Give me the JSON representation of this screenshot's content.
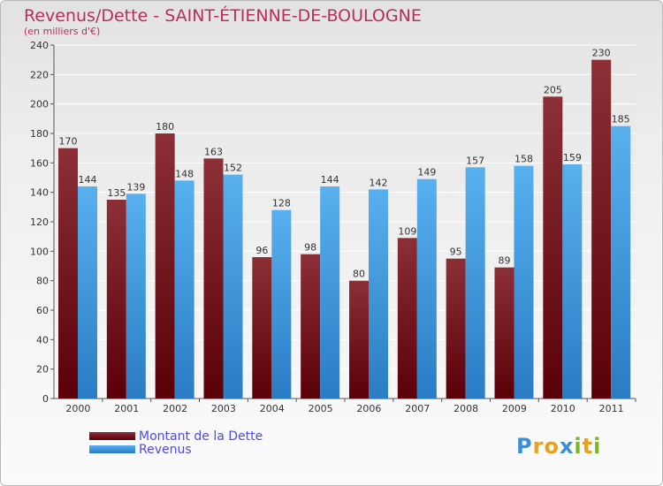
{
  "chart_data": {
    "type": "bar",
    "title": "Revenus/Dette - SAINT-ÉTIENNE-DE-BOULOGNE",
    "subtitle": "(en milliers d'€)",
    "categories": [
      "2000",
      "2001",
      "2002",
      "2003",
      "2004",
      "2005",
      "2006",
      "2007",
      "2008",
      "2009",
      "2010",
      "2011"
    ],
    "series": [
      {
        "name": "Montant de la Dette",
        "color": "#7a1a22",
        "values": [
          170,
          135,
          180,
          163,
          96,
          98,
          80,
          109,
          95,
          89,
          205,
          230
        ]
      },
      {
        "name": "Revenus",
        "color": "#4aa3e8",
        "values": [
          144,
          139,
          148,
          152,
          128,
          144,
          142,
          149,
          157,
          158,
          159,
          185
        ]
      }
    ],
    "ylim": [
      0,
      240
    ],
    "yticks": [
      0,
      20,
      40,
      60,
      80,
      100,
      120,
      140,
      160,
      180,
      200,
      220,
      240
    ],
    "grid": true,
    "xlabel": "",
    "ylabel": ""
  },
  "logo": {
    "text": "Proxiti",
    "letters": [
      "P",
      "r",
      "o",
      "x",
      "i",
      "t",
      "i"
    ],
    "colors": [
      "#3a8fd8",
      "#e8a020",
      "#e8a020",
      "#3a8fd8",
      "#78b828",
      "#e8a020",
      "#78b828"
    ]
  }
}
